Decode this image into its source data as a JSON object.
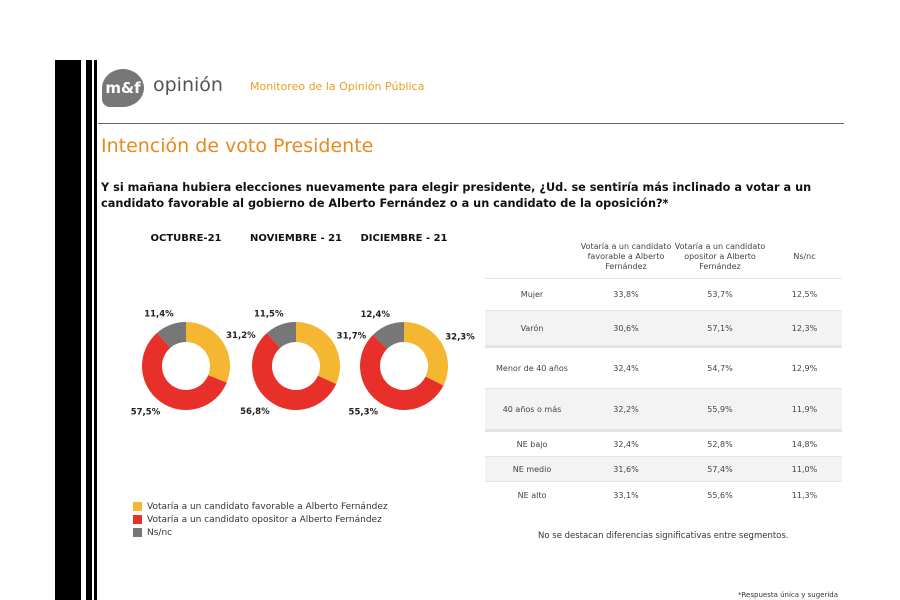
{
  "header": {
    "logo_text": "m&f",
    "brand": "opinión",
    "subtitle": "Monitoreo de la Opinión Pública"
  },
  "title": "Intención de voto Presidente",
  "question": "Y si mañana hubiera elecciones nuevamente para elegir presidente, ¿Ud. se sentiría más inclinado a votar a un candidato favorable al gobierno de Alberto Fernández o a un candidato de la oposición?*",
  "chart_data": {
    "type": "pie",
    "categories": [
      "Votaría a un candidato favorable a Alberto Fernández",
      "Votaría a un candidato opositor a Alberto Fernández",
      "Ns/nc"
    ],
    "colors": [
      "#f5b731",
      "#e8302a",
      "#777777"
    ],
    "charts": [
      {
        "title": "OCTUBRE-21",
        "values": [
          31.2,
          57.5,
          11.4
        ],
        "labels": [
          "31,2%",
          "57,5%",
          "11,4%"
        ]
      },
      {
        "title": "NOVIEMBRE - 21",
        "values": [
          31.7,
          56.8,
          11.5
        ],
        "labels": [
          "31,7%",
          "56,8%",
          "11,5%"
        ]
      },
      {
        "title": "DICIEMBRE - 21",
        "values": [
          32.3,
          55.3,
          12.4
        ],
        "labels": [
          "32,3%",
          "55,3%",
          "12,4%"
        ]
      }
    ]
  },
  "table": {
    "headers": [
      "",
      "Votaría a un candidato favorable a Alberto Fernández",
      "Votaría a un candidato opositor a Alberto Fernández",
      "Ns/nc"
    ],
    "rows": [
      [
        "Mujer",
        "33,8%",
        "53,7%",
        "12,5%"
      ],
      [
        "Varón",
        "30,6%",
        "57,1%",
        "12,3%"
      ],
      [
        "Menor de 40 años",
        "32,4%",
        "54,7%",
        "12,9%"
      ],
      [
        "40 años o más",
        "32,2%",
        "55,9%",
        "11,9%"
      ],
      [
        "NE bajo",
        "32,4%",
        "52,8%",
        "14,8%"
      ],
      [
        "NE medio",
        "31,6%",
        "57,4%",
        "11,0%"
      ],
      [
        "NE alto",
        "33,1%",
        "55,6%",
        "11,3%"
      ]
    ]
  },
  "note": "No se destacan diferencias significativas entre segmentos.",
  "footnote": "*Respuesta única y sugerida"
}
